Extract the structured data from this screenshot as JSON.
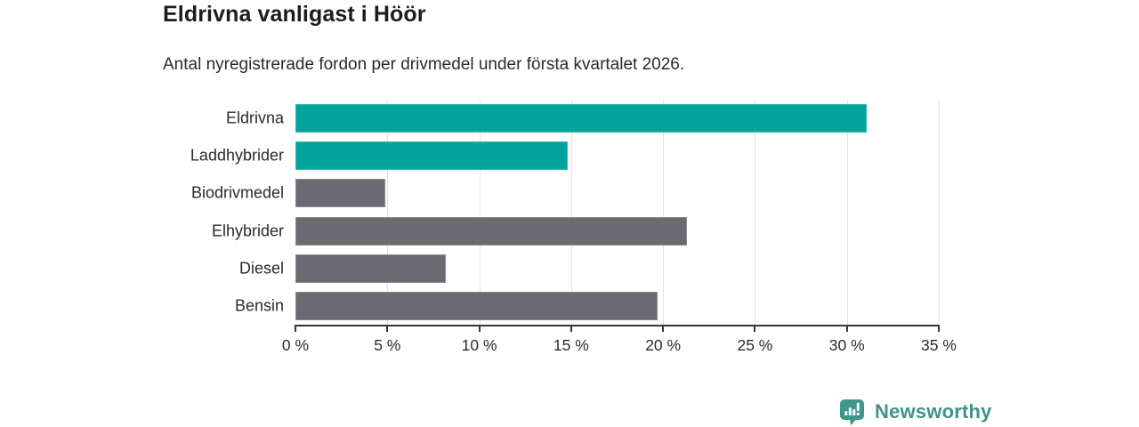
{
  "header": {
    "title": "Eldrivna vanligast i Höör",
    "subtitle": "Antal nyregistrerade fordon per drivmedel under första kvartalet 2026."
  },
  "chart_data": {
    "type": "bar",
    "orientation": "horizontal",
    "title": "Eldrivna vanligast i Höör",
    "subtitle": "Antal nyregistrerade fordon per drivmedel under första kvartalet 2026.",
    "categories": [
      "Eldrivna",
      "Laddhybrider",
      "Biodrivmedel",
      "Elhybrider",
      "Diesel",
      "Bensin"
    ],
    "values": [
      31.1,
      14.8,
      4.9,
      21.3,
      8.2,
      19.7
    ],
    "unit": "%",
    "xlabel": "",
    "ylabel": "",
    "xlim": [
      0,
      35
    ],
    "x_ticks": [
      0,
      5,
      10,
      15,
      20,
      25,
      30,
      35
    ],
    "x_tick_labels": [
      "0 %",
      "5 %",
      "10 %",
      "15 %",
      "20 %",
      "25 %",
      "30 %",
      "35 %"
    ],
    "grid": "vertical",
    "legend": "none",
    "bar_colors": [
      "#00a49a",
      "#00a49a",
      "#6a6a70",
      "#6a6a70",
      "#6a6a70",
      "#6a6a70"
    ],
    "highlight_color": "#00a49a",
    "default_color": "#6a6a70"
  },
  "footer": {
    "brand": "Newsworthy",
    "brand_color": "#3e948b"
  }
}
